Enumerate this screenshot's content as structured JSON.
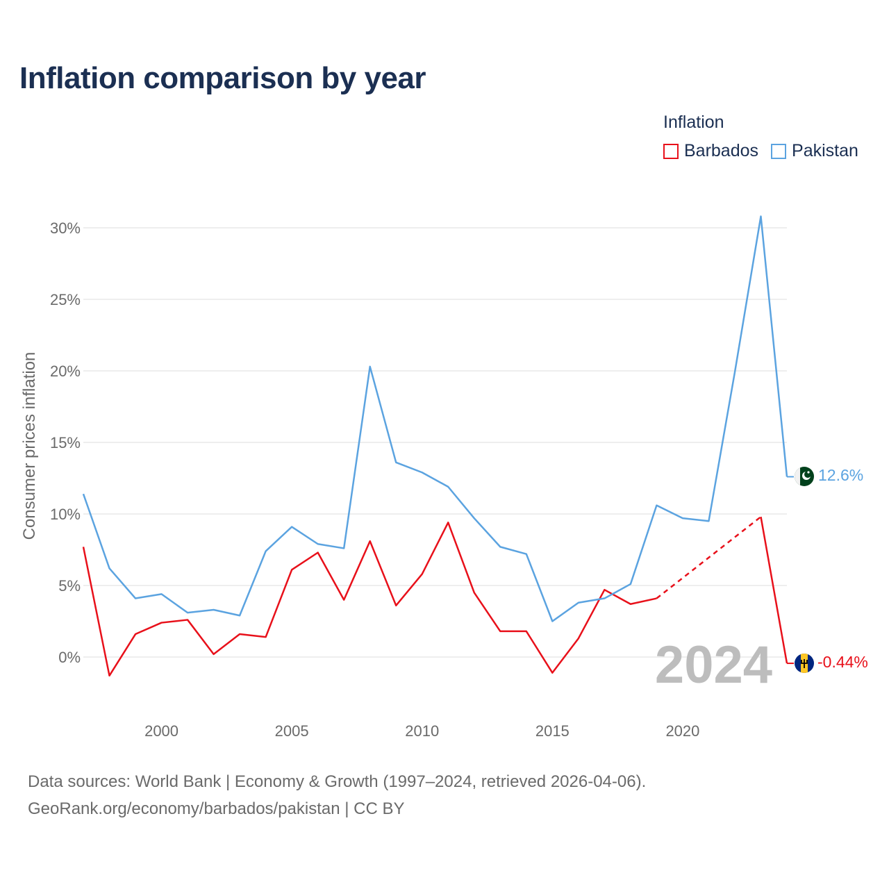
{
  "title": "Inflation comparison by year",
  "legend": {
    "title": "Inflation",
    "items": [
      {
        "label": "Barbados",
        "color": "#e8101a"
      },
      {
        "label": "Pakistan",
        "color": "#5ba3e0"
      }
    ]
  },
  "year_watermark": "2024",
  "end_labels": {
    "pakistan": "12.6%",
    "barbados": "-0.44%"
  },
  "footer": {
    "line1": "Data sources: World Bank | Economy & Growth (1997–2024, retrieved 2026-04-06).",
    "line2": "GeoRank.org/economy/barbados/pakistan | CC BY"
  },
  "chart_data": {
    "type": "line",
    "title": "Inflation comparison by year",
    "xlabel": "",
    "ylabel": "Consumer prices inflation",
    "xlim": [
      1997,
      2024
    ],
    "ylim": [
      -3,
      31
    ],
    "x_ticks": [
      2000,
      2005,
      2010,
      2015,
      2020
    ],
    "x_tick_labels": [
      "2000",
      "2005",
      "2010",
      "2015",
      "2020"
    ],
    "y_ticks": [
      0,
      5,
      10,
      15,
      20,
      25,
      30
    ],
    "y_tick_labels": [
      "0%",
      "5%",
      "10%",
      "15%",
      "20%",
      "25%",
      "30%"
    ],
    "grid": true,
    "x": [
      1997,
      1998,
      1999,
      2000,
      2001,
      2002,
      2003,
      2004,
      2005,
      2006,
      2007,
      2008,
      2009,
      2010,
      2011,
      2012,
      2013,
      2014,
      2015,
      2016,
      2017,
      2018,
      2019,
      2020,
      2021,
      2022,
      2023,
      2024
    ],
    "series": [
      {
        "name": "Barbados",
        "color": "#e8101a",
        "values": [
          7.7,
          -1.3,
          1.6,
          2.4,
          2.6,
          0.2,
          1.6,
          1.4,
          6.1,
          7.3,
          4.0,
          8.1,
          3.6,
          5.8,
          9.4,
          4.5,
          1.8,
          1.8,
          -1.1,
          1.3,
          4.7,
          3.7,
          4.1,
          null,
          null,
          null,
          9.8,
          -0.44
        ],
        "dashed_gap": {
          "from_year": 2019,
          "to_year": 2023
        },
        "end_label": "-0.44%"
      },
      {
        "name": "Pakistan",
        "color": "#5ba3e0",
        "values": [
          11.4,
          6.2,
          4.1,
          4.4,
          3.1,
          3.3,
          2.9,
          7.4,
          9.1,
          7.9,
          7.6,
          20.3,
          13.6,
          12.9,
          11.9,
          9.7,
          7.7,
          7.2,
          2.5,
          3.8,
          4.1,
          5.1,
          10.6,
          9.7,
          9.5,
          19.9,
          30.8,
          12.6
        ],
        "end_label": "12.6%"
      }
    ]
  }
}
